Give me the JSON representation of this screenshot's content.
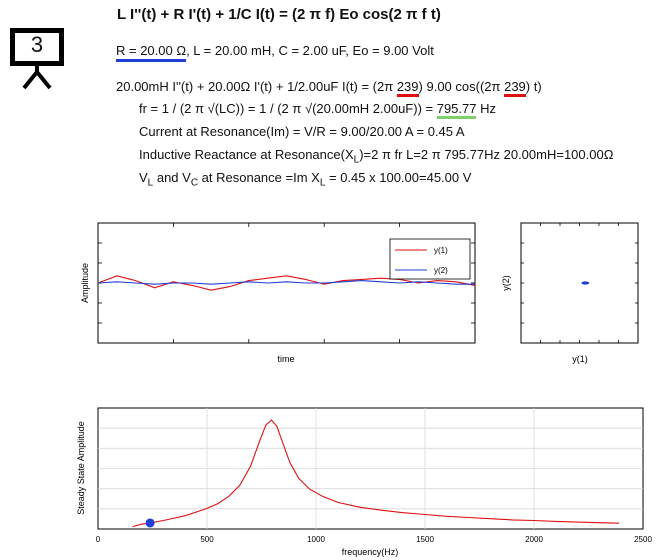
{
  "board": {
    "number": "3"
  },
  "equation": {
    "title": "L I''(t) + R I'(t) + 1/C I(t) = (2 π f) Eo cos(2 π f t)"
  },
  "params": {
    "r": "R = 20.00 Ω",
    "rest": ", L = 20.00 mH, C = 2.00 uF, Eo = 9.00 Volt"
  },
  "line1": {
    "a": "20.00mH I''(t) + 20.00Ω I'(t) + 1/2.00uF I(t) = (2π ",
    "f1": "239",
    "b": ") 9.00 cos((2π ",
    "f2": "239",
    "c": ") t)"
  },
  "fr": {
    "a": "fr = 1 / (2 π √(LC)) = 1 / (2 π √(20.00mH 2.00uF)) = ",
    "val": "795.77",
    "unit": " Hz"
  },
  "current": "Current at Resonance(Im) = V/R = 9.00/20.00 A = 0.45 A",
  "reactance": {
    "a": "Inductive Reactance at Resonance(X",
    "sub": "L",
    "b": ")=2 π fr L=2 π 795.77Hz 20.00mH=100.00Ω"
  },
  "vlvc": {
    "a": "V",
    "sub1": "L",
    "b": " and V",
    "sub2": "C",
    "c": " at Resonance =Im X",
    "sub3": "L",
    "d": " = 0.45 x 100.00=45.00 V"
  },
  "colors": {
    "red": "#e01010",
    "blue": "#1f3fd6",
    "green": "#7fcf6a"
  },
  "chart_data": [
    {
      "type": "line",
      "xlabel": "time",
      "ylabel": "Amplitude",
      "legend": "top-right",
      "x_ticks_shown": false,
      "series": [
        {
          "name": "y(1)",
          "color": "#e01010",
          "x": [
            0,
            1,
            2,
            3,
            4,
            5,
            6,
            7,
            8,
            9,
            10,
            11,
            12,
            13,
            14,
            15,
            16,
            17,
            18,
            19,
            20
          ],
          "values": [
            0.0,
            0.06,
            0.02,
            -0.04,
            0.01,
            -0.02,
            -0.06,
            -0.03,
            0.02,
            0.04,
            0.06,
            0.03,
            -0.01,
            0.02,
            0.03,
            0.04,
            0.03,
            0.0,
            0.02,
            0.01,
            -0.02
          ]
        },
        {
          "name": "y(2)",
          "color": "#1f3fd6",
          "x": [
            0,
            1,
            2,
            3,
            4,
            5,
            6,
            7,
            8,
            9,
            10,
            11,
            12,
            13,
            14,
            15,
            16,
            17,
            18,
            19,
            20
          ],
          "values": [
            0.0,
            0.01,
            0.0,
            -0.01,
            0.0,
            0.0,
            -0.01,
            0.0,
            0.01,
            0.0,
            0.01,
            0.0,
            0.0,
            0.01,
            0.02,
            0.01,
            0.0,
            0.01,
            0.0,
            -0.01,
            -0.01
          ]
        }
      ],
      "ylim": [
        -0.5,
        0.5
      ]
    },
    {
      "type": "scatter",
      "xlabel": "y(1)",
      "ylabel": "y(2)",
      "x_ticks_shown": false,
      "points": [
        {
          "x": 0.1,
          "y": 0.0,
          "color": "#1f3fd6"
        }
      ],
      "xlim": [
        -1,
        1
      ],
      "ylim": [
        -1,
        1
      ]
    },
    {
      "type": "line",
      "xlabel": "frequency(Hz)",
      "ylabel": "Steady State Amplitude",
      "x_tick_labels": [
        "0",
        "500",
        "1000",
        "1500",
        "2000",
        "2500"
      ],
      "xlim": [
        0,
        2500
      ],
      "ylim": [
        0,
        1.0
      ],
      "series": [
        {
          "name": "",
          "color": "#e01010",
          "x": [
            159,
            200,
            240,
            300,
            350,
            400,
            450,
            500,
            550,
            600,
            650,
            700,
            740,
            770,
            796,
            820,
            850,
            880,
            920,
            970,
            1030,
            1100,
            1200,
            1300,
            1400,
            1500,
            1600,
            1700,
            1800,
            1900,
            2000,
            2100,
            2200,
            2300,
            2390
          ],
          "values": [
            0.02,
            0.04,
            0.05,
            0.07,
            0.09,
            0.11,
            0.14,
            0.17,
            0.21,
            0.27,
            0.36,
            0.52,
            0.72,
            0.86,
            0.9,
            0.85,
            0.7,
            0.55,
            0.42,
            0.33,
            0.27,
            0.22,
            0.18,
            0.155,
            0.135,
            0.12,
            0.105,
            0.095,
            0.085,
            0.075,
            0.07,
            0.063,
            0.057,
            0.052,
            0.048
          ]
        }
      ],
      "marker": {
        "x": 239,
        "y": 0.05,
        "color": "#1f3fd6"
      }
    }
  ]
}
